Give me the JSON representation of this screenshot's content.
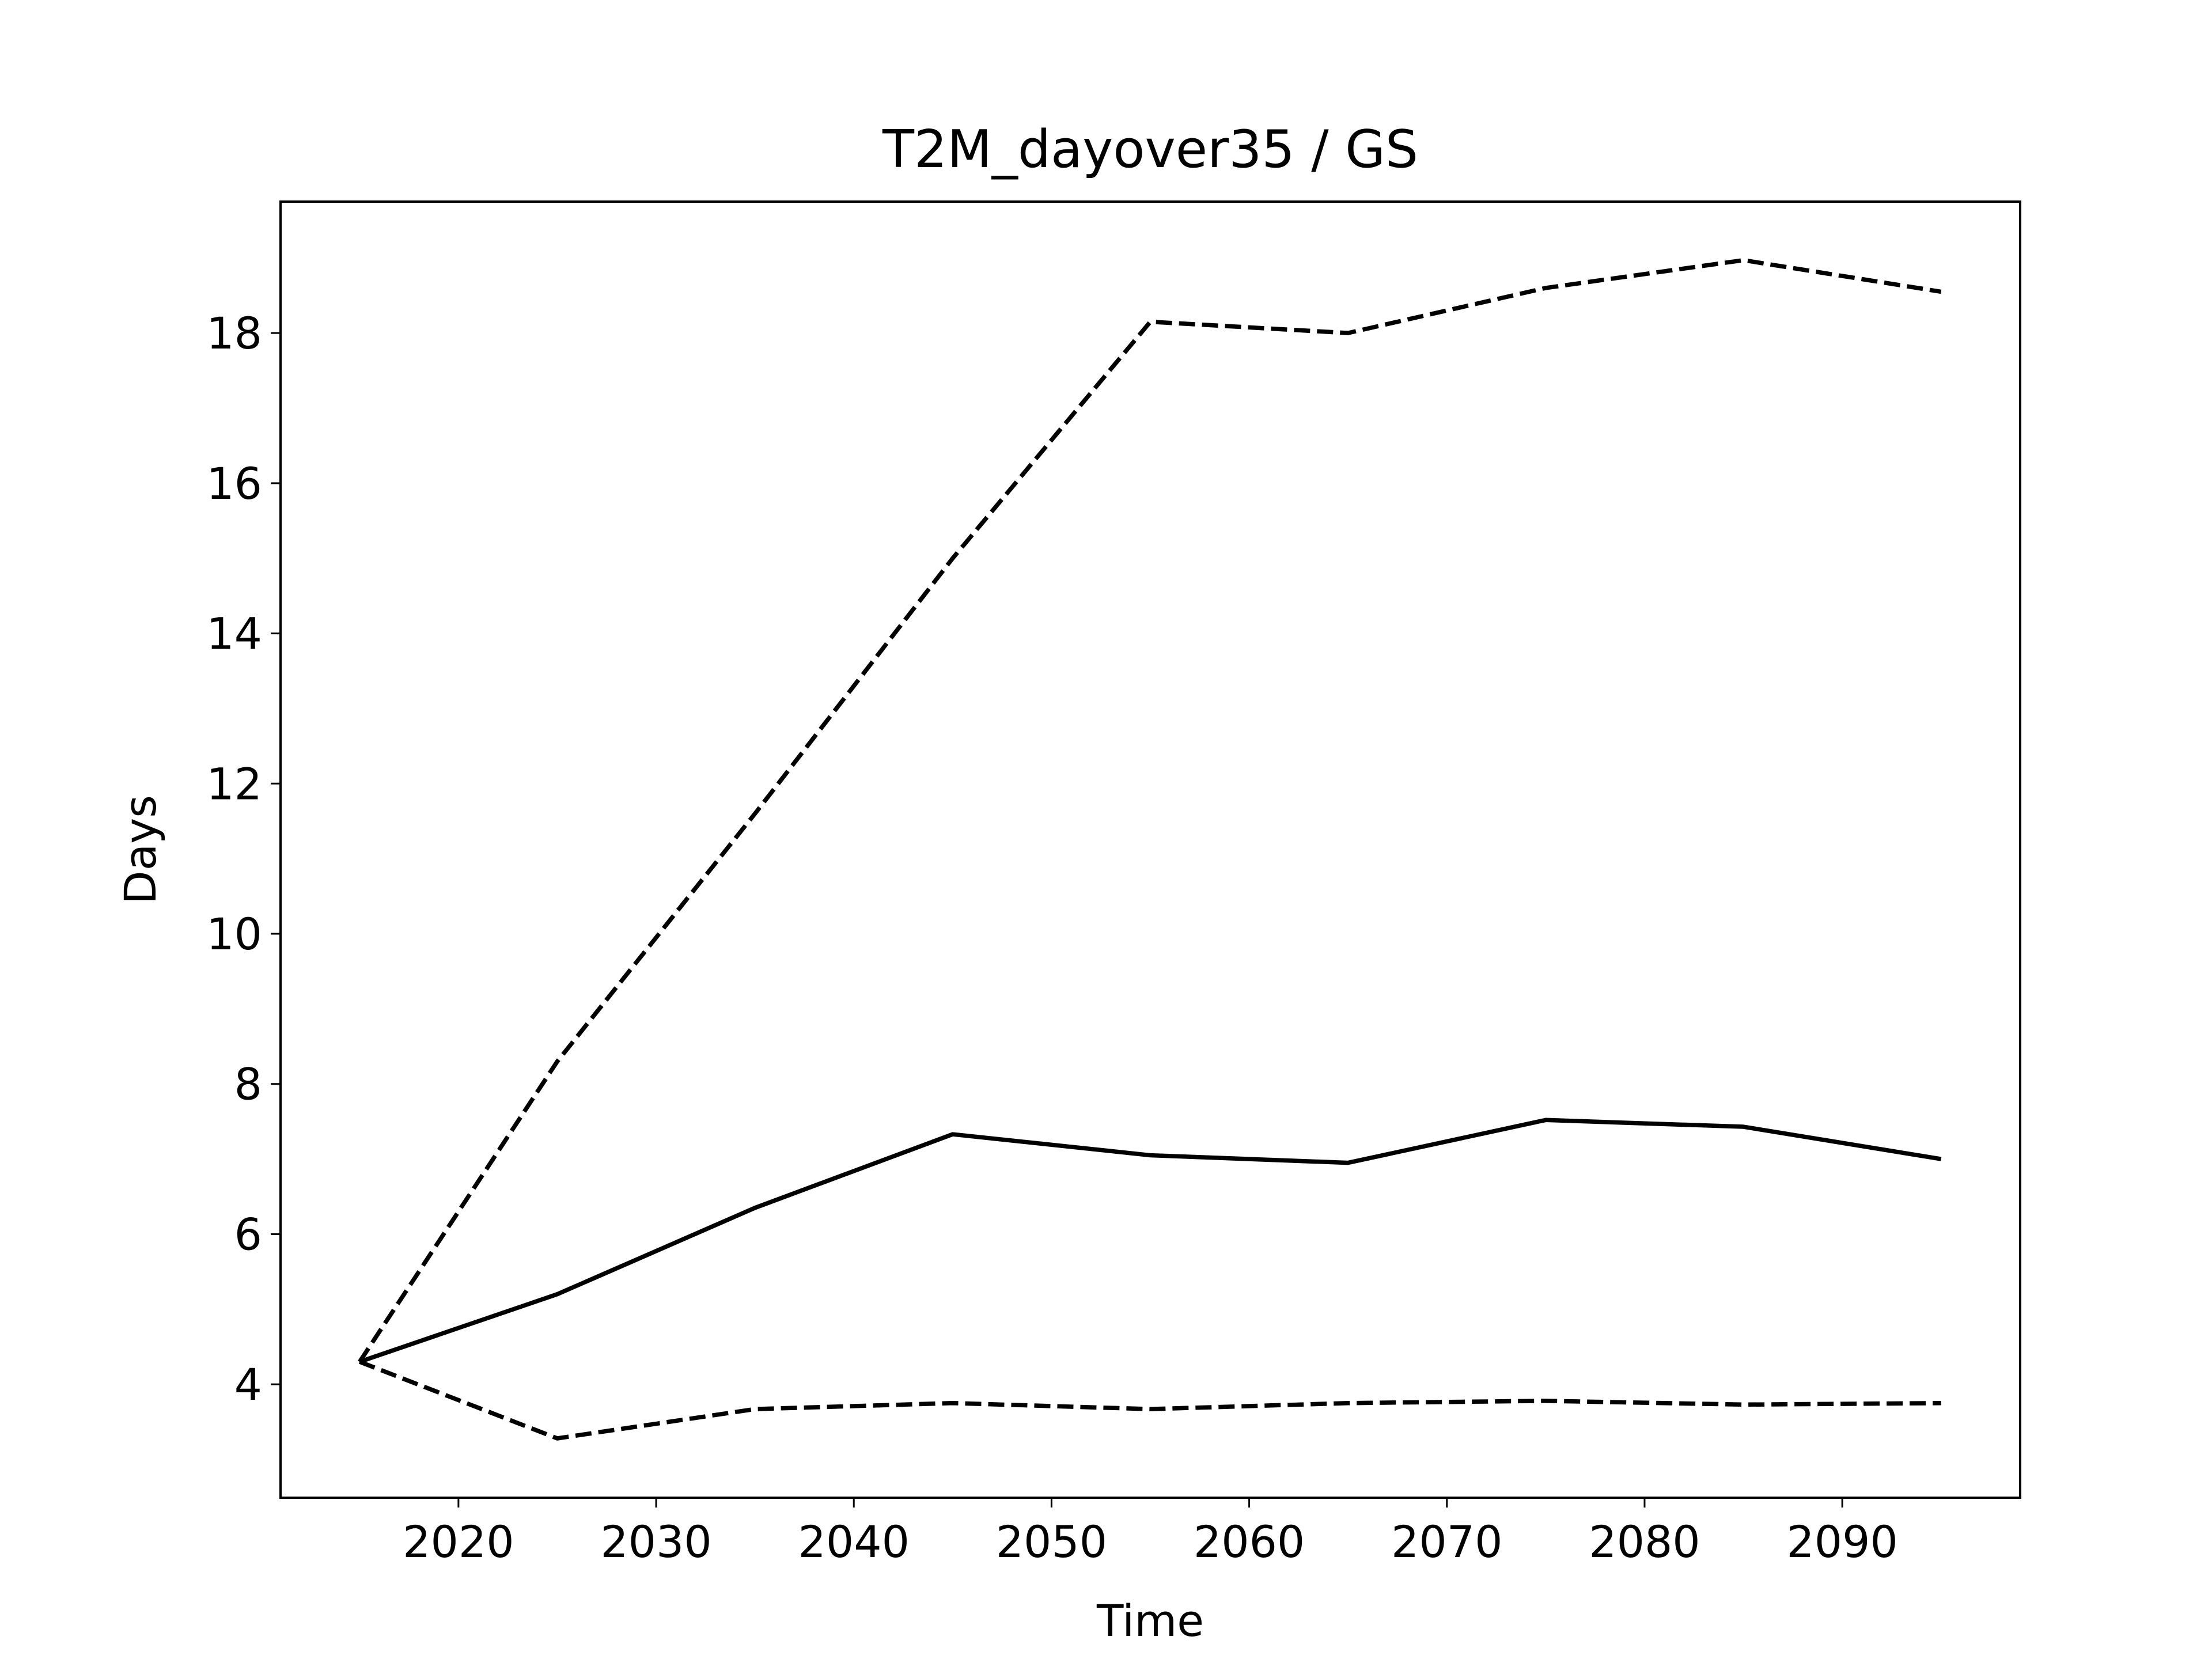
{
  "chart_data": {
    "type": "line",
    "title": "T2M_dayover35 / GS",
    "x_label": "Time",
    "y_label": "Days",
    "x": [
      2015,
      2025,
      2035,
      2045,
      2055,
      2065,
      2075,
      2085,
      2095
    ],
    "series": [
      {
        "color": "#000000",
        "linestyle": "solid",
        "values": [
          4.3,
          5.2,
          6.35,
          7.33,
          7.05,
          6.95,
          7.52,
          7.43,
          7.0
        ]
      },
      {
        "color": "#000000",
        "linestyle": "dashed",
        "values": [
          4.3,
          8.3,
          11.6,
          15.0,
          18.15,
          18.0,
          18.6,
          18.97,
          18.55
        ]
      },
      {
        "color": "#000000",
        "linestyle": "dashed",
        "values": [
          4.3,
          3.28,
          3.67,
          3.75,
          3.67,
          3.75,
          3.78,
          3.73,
          3.75
        ]
      }
    ],
    "xlim": [
      2011,
      2099
    ],
    "xticks": [
      2020,
      2030,
      2040,
      2050,
      2060,
      2070,
      2080,
      2090
    ],
    "ylim": [
      2.49,
      19.75
    ],
    "yticks": [
      4,
      6,
      8,
      10,
      12,
      14,
      16,
      18
    ],
    "grid": false
  }
}
